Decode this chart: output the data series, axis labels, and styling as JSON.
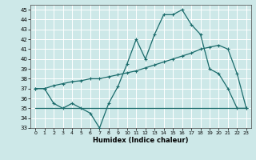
{
  "xlabel": "Humidex (Indice chaleur)",
  "xlim": [
    -0.5,
    23.5
  ],
  "ylim": [
    33,
    45.5
  ],
  "yticks": [
    33,
    34,
    35,
    36,
    37,
    38,
    39,
    40,
    41,
    42,
    43,
    44,
    45
  ],
  "xticks": [
    0,
    1,
    2,
    3,
    4,
    5,
    6,
    7,
    8,
    9,
    10,
    11,
    12,
    13,
    14,
    15,
    16,
    17,
    18,
    19,
    20,
    21,
    22,
    23
  ],
  "bg_color": "#cde8e8",
  "grid_color": "#b0d0d0",
  "line_color": "#1a6b6b",
  "line1_x": [
    0,
    1,
    2,
    3,
    4,
    5,
    6,
    7,
    8,
    9,
    10,
    11,
    12,
    13,
    14,
    15,
    16,
    17,
    18,
    19,
    20,
    21,
    22,
    23
  ],
  "line1_y": [
    37.0,
    37.0,
    37.3,
    37.5,
    37.7,
    37.8,
    38.0,
    38.0,
    38.2,
    38.4,
    38.6,
    38.8,
    39.1,
    39.4,
    39.7,
    40.0,
    40.3,
    40.6,
    41.0,
    41.2,
    41.4,
    41.0,
    38.5,
    35.0
  ],
  "line2_x": [
    0,
    1,
    2,
    3,
    4,
    5,
    6,
    7,
    8,
    9,
    10,
    11,
    12,
    13,
    14,
    15,
    16,
    17,
    18,
    19,
    20,
    21,
    22,
    23
  ],
  "line2_y": [
    37.0,
    37.0,
    35.5,
    35.0,
    35.5,
    35.0,
    34.5,
    33.0,
    35.5,
    37.2,
    39.5,
    42.0,
    40.0,
    42.5,
    44.5,
    44.5,
    45.0,
    43.5,
    42.5,
    39.0,
    38.5,
    37.0,
    35.0,
    35.0
  ],
  "line3_x": [
    0,
    23
  ],
  "line3_y": [
    35.0,
    35.0
  ]
}
